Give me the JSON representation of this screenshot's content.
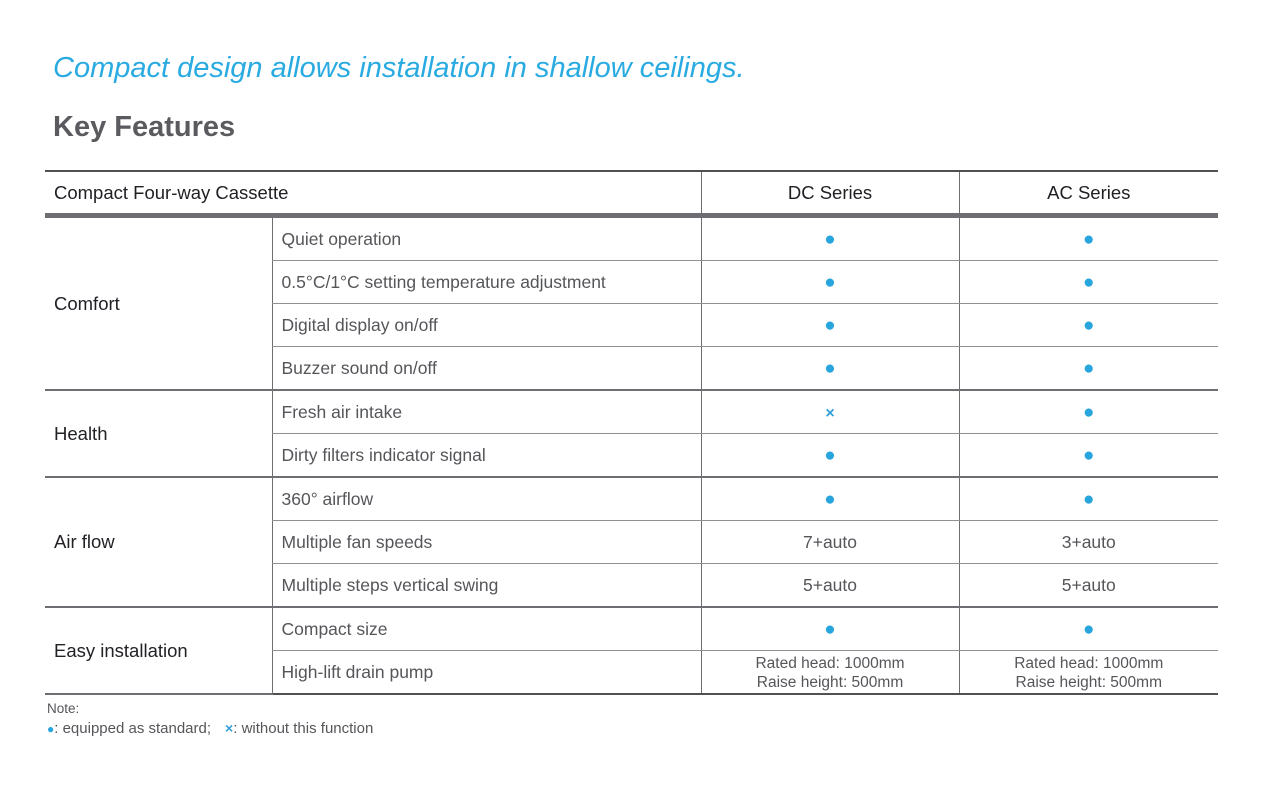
{
  "page": {
    "tagline": "Compact design allows installation in shallow ceilings.",
    "heading": "Key Features"
  },
  "colors": {
    "accent_blue": "#29abe2",
    "dot_blue": "#29a5dd",
    "heading_gray": "#5b5b5f",
    "header_text": "#1f1f24",
    "body_text_gray": "#55565a",
    "grid_line": "#8e9092",
    "group_line": "#6d6e71"
  },
  "table": {
    "header": {
      "title": "Compact Four-way Cassette",
      "dc_label": "DC Series",
      "ac_label": "AC Series"
    },
    "groups": [
      {
        "category": "Comfort",
        "rows": [
          {
            "feature": "Quiet operation",
            "dc": "●",
            "ac": "●"
          },
          {
            "feature": "0.5°C/1°C setting temperature adjustment",
            "dc": "●",
            "ac": "●"
          },
          {
            "feature": "Digital display on/off",
            "dc": "●",
            "ac": "●"
          },
          {
            "feature": "Buzzer sound on/off",
            "dc": "●",
            "ac": "●"
          }
        ]
      },
      {
        "category": "Health",
        "rows": [
          {
            "feature": "Fresh air intake",
            "dc": "×",
            "ac": "●"
          },
          {
            "feature": "Dirty filters indicator signal",
            "dc": "●",
            "ac": "●"
          }
        ]
      },
      {
        "category": "Air flow",
        "rows": [
          {
            "feature": "360° airflow",
            "dc": "●",
            "ac": "●"
          },
          {
            "feature": "Multiple fan speeds",
            "dc": "7+auto",
            "ac": "3+auto"
          },
          {
            "feature": "Multiple steps vertical swing",
            "dc": "5+auto",
            "ac": "5+auto"
          }
        ]
      },
      {
        "category": "Easy installation",
        "rows": [
          {
            "feature": "Compact size",
            "dc": "●",
            "ac": "●"
          },
          {
            "feature": "High-lift drain pump",
            "dc1": "Rated head: 1000mm",
            "dc2": "Raise height: 500mm",
            "ac1": "Rated head: 1000mm",
            "ac2": "Raise height: 500mm"
          }
        ]
      }
    ]
  },
  "note": {
    "label": "Note:",
    "dot_symbol": "●",
    "dot_text": ": equipped as standard;",
    "cross_symbol": "×",
    "cross_text": ": without this function"
  }
}
